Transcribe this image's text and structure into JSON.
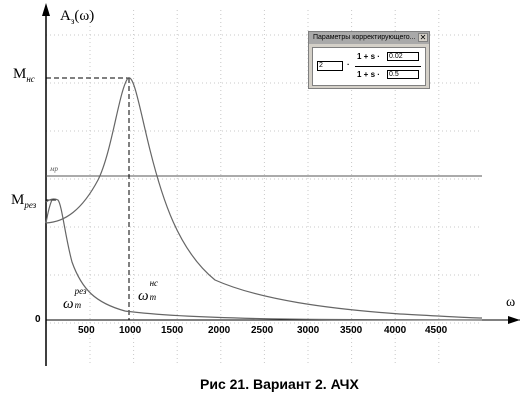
{
  "graph": {
    "y_axis_title_main": "A",
    "y_axis_title_sub": "з",
    "y_axis_title_arg": "(ω)",
    "x_axis_title": "ω",
    "zero_label": "0",
    "m_label": "мр",
    "x_ticks": [
      "500",
      "1000",
      "1500",
      "2000",
      "2500",
      "3000",
      "3500",
      "4000",
      "4500"
    ]
  },
  "labels": {
    "m_hc_main": "M",
    "m_hc_sub": "нс",
    "m_res_main": "M",
    "m_res_sub": "рез",
    "omega_res_main": "ω",
    "omega_res_sub": "m",
    "omega_res_sup": "рез",
    "omega_hc_main": "ω",
    "omega_hc_sub": "m",
    "omega_hc_sup": "нс"
  },
  "dialog": {
    "title": "Параметры корректирующего...",
    "close_glyph": "✕",
    "gain_value": "2",
    "dot": "·",
    "num_text": "1 + s ·",
    "num_value": "0.02",
    "den_text": "1 + s ·",
    "den_value": "0.5"
  },
  "caption": "Рис 21. Вариант 2. АЧХ"
}
